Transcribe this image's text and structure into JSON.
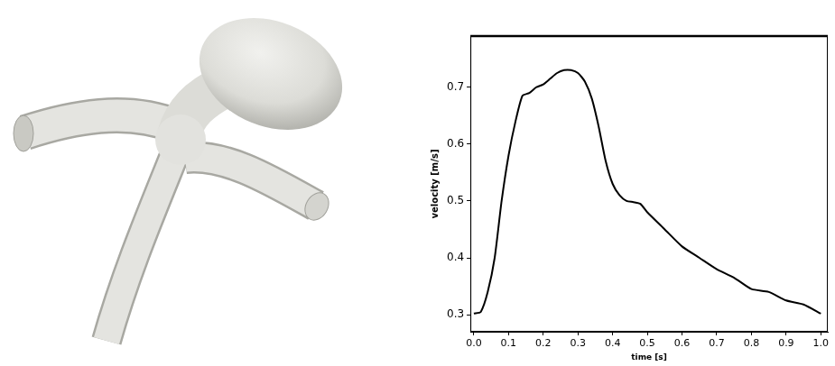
{
  "chart_data": {
    "type": "line",
    "xlabel": "time [s]",
    "ylabel": "velocity [m/s]",
    "x": [
      0.0,
      0.02,
      0.04,
      0.06,
      0.08,
      0.1,
      0.12,
      0.14,
      0.16,
      0.18,
      0.2,
      0.22,
      0.24,
      0.26,
      0.28,
      0.3,
      0.32,
      0.34,
      0.36,
      0.38,
      0.4,
      0.42,
      0.44,
      0.46,
      0.48,
      0.5,
      0.55,
      0.6,
      0.65,
      0.7,
      0.75,
      0.8,
      0.85,
      0.9,
      0.95,
      1.0
    ],
    "values": [
      0.302,
      0.305,
      0.34,
      0.4,
      0.5,
      0.58,
      0.64,
      0.685,
      0.69,
      0.7,
      0.705,
      0.715,
      0.725,
      0.73,
      0.73,
      0.725,
      0.71,
      0.68,
      0.63,
      0.57,
      0.53,
      0.51,
      0.5,
      0.498,
      0.495,
      0.48,
      0.45,
      0.42,
      0.4,
      0.38,
      0.365,
      0.345,
      0.34,
      0.325,
      0.318,
      0.302
    ],
    "color": "#000000",
    "xlim": [
      -0.01,
      1.02
    ],
    "ylim": [
      0.27,
      0.79
    ],
    "xticks": [
      {
        "value": 0,
        "label": "0.0"
      },
      0.1,
      0.2,
      0.3,
      0.4,
      0.5,
      0.6,
      0.7,
      0.8,
      0.9,
      {
        "value": 1,
        "label": "1.0"
      }
    ],
    "yticks": [
      0.3,
      0.4,
      0.5,
      0.6,
      0.7
    ],
    "grid": false
  }
}
